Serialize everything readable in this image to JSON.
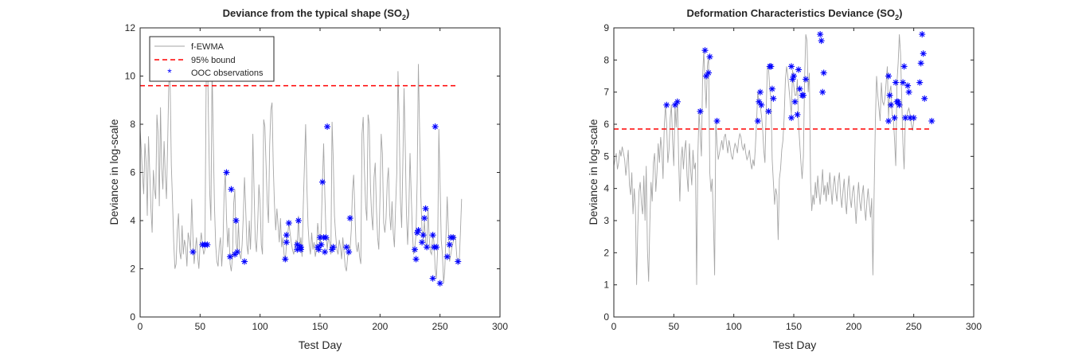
{
  "chart_data": [
    {
      "type": "line",
      "title": "Deviance from the typical shape (SO",
      "title_sub": "2",
      "title_close": ")",
      "xlabel": "Test Day",
      "ylabel": "Deviance in log-scale",
      "xlim": [
        0,
        300
      ],
      "ylim": [
        0,
        12
      ],
      "xticks": [
        "0",
        "50",
        "100",
        "150",
        "200",
        "250",
        "300"
      ],
      "yticks": [
        "0",
        "2",
        "4",
        "6",
        "8",
        "10",
        "12"
      ],
      "legend": {
        "position": "top-left",
        "entries": [
          "f-EWMA",
          "95% bound",
          "OOC observations"
        ]
      },
      "bound": 9.6,
      "series": [
        {
          "name": "f-EWMA",
          "color": "#a6a6a6",
          "values": [
            7.8,
            6.9,
            5.9,
            5.1,
            7.2,
            6.4,
            4.2,
            7.5,
            6.0,
            4.5,
            3.5,
            6.1,
            5.3,
            4.9,
            8.4,
            7.6,
            4.6,
            8.7,
            6.2,
            5.3,
            7.3,
            5.9,
            4.9,
            7.4,
            10.0,
            9.7,
            6.3,
            4.8,
            3.1,
            2.0,
            2.2,
            3.6,
            4.3,
            2.7,
            2.4,
            3.8,
            2.6,
            3.2,
            2.9,
            2.1,
            3.5,
            3.2,
            2.8,
            4.9,
            3.4,
            2.2,
            2.8,
            3.3,
            2.5,
            2.0,
            3.0,
            3.5,
            3.0,
            2.6,
            2.8,
            9.6,
            11.5,
            8.1,
            5.2,
            4.0,
            10.4,
            7.3,
            4.6,
            3.0,
            2.3,
            2.1,
            2.9,
            3.3,
            2.1,
            3.0,
            5.1,
            6.0,
            4.1,
            2.9,
            3.7,
            2.2,
            1.9,
            2.5,
            4.7,
            5.3,
            3.1,
            2.7,
            3.9,
            2.6,
            2.4,
            3.0,
            4.2,
            5.8,
            4.5,
            3.0,
            2.6,
            4.0,
            2.8,
            4.4,
            7.6,
            5.3,
            3.2,
            2.7,
            3.9,
            5.5,
            4.7,
            3.0,
            2.6,
            8.2,
            7.9,
            6.3,
            4.7,
            3.9,
            7.1,
            8.6,
            8.9,
            6.3,
            4.7,
            3.6,
            4.5,
            3.8,
            3.1,
            4.1,
            2.9,
            3.3,
            2.6,
            2.3,
            3.0,
            3.4,
            3.9,
            3.5,
            3.1,
            2.8,
            2.6,
            2.9,
            3.2,
            3.0,
            4.2,
            2.8,
            3.3,
            2.5,
            4.6,
            6.3,
            8.0,
            5.5,
            3.8,
            3.0,
            2.6,
            3.5,
            2.8,
            3.1,
            2.5,
            2.8,
            3.9,
            3.4,
            2.9,
            3.7,
            5.6,
            7.2,
            5.1,
            3.4,
            2.8,
            3.3,
            3.1,
            2.6,
            8.1,
            6.5,
            4.2,
            3.4,
            2.8,
            2.6,
            3.2,
            2.9,
            2.4,
            3.3,
            2.7,
            2.1,
            1.9,
            2.5,
            3.0,
            2.8,
            3.6,
            5.2,
            5.9,
            4.4,
            3.0,
            2.7,
            3.1,
            2.5,
            2.2,
            7.6,
            8.3,
            6.1,
            4.6,
            4.0,
            8.4,
            8.0,
            5.4,
            4.2,
            3.6,
            5.8,
            6.4,
            4.5,
            3.3,
            2.8,
            5.0,
            7.6,
            6.8,
            3.9,
            3.5,
            4.1,
            5.6,
            6.2,
            4.3,
            3.6,
            4.8,
            3.5,
            2.9,
            4.6,
            6.0,
            10.2,
            8.1,
            4.9,
            3.7,
            6.4,
            9.5,
            7.1,
            4.3,
            3.0,
            4.4,
            6.8,
            5.1,
            3.5,
            2.6,
            2.9,
            3.4,
            5.7,
            10.5,
            7.6,
            5.0,
            3.6,
            3.2,
            4.0,
            3.1,
            2.8,
            4.5,
            3.3,
            2.7,
            2.6,
            3.5,
            3.1,
            2.0,
            1.6,
            2.8,
            7.8,
            5.6,
            3.2,
            2.6,
            1.4,
            2.0,
            3.4,
            5.0,
            3.6,
            2.3,
            2.6,
            2.9,
            3.1,
            3.4,
            3.2,
            2.5,
            2.2,
            2.3,
            3.5,
            4.9
          ],
          "x_start": 0,
          "x_step": 1
        },
        {
          "name": "OOC observations",
          "color": "#0000ff",
          "points": [
            [
              44,
              2.7
            ],
            [
              52,
              3.0
            ],
            [
              54,
              3.0
            ],
            [
              56,
              3.0
            ],
            [
              72,
              6.0
            ],
            [
              75,
              2.5
            ],
            [
              76,
              5.3
            ],
            [
              79,
              2.6
            ],
            [
              80,
              4.0
            ],
            [
              81,
              2.7
            ],
            [
              87,
              2.3
            ],
            [
              121,
              2.4
            ],
            [
              122,
              3.4
            ],
            [
              122,
              3.1
            ],
            [
              124,
              3.9
            ],
            [
              131,
              3.0
            ],
            [
              131,
              2.8
            ],
            [
              132,
              4.0
            ],
            [
              133,
              2.9
            ],
            [
              134,
              2.9
            ],
            [
              134,
              2.8
            ],
            [
              148,
              2.9
            ],
            [
              149,
              2.8
            ],
            [
              150,
              3.3
            ],
            [
              151,
              3.0
            ],
            [
              152,
              5.6
            ],
            [
              153,
              3.3
            ],
            [
              154,
              2.7
            ],
            [
              155,
              3.3
            ],
            [
              156,
              7.9
            ],
            [
              160,
              2.8
            ],
            [
              161,
              2.9
            ],
            [
              172,
              2.9
            ],
            [
              174,
              2.7
            ],
            [
              175,
              4.1
            ],
            [
              229,
              2.8
            ],
            [
              230,
              2.4
            ],
            [
              231,
              3.5
            ],
            [
              232,
              3.6
            ],
            [
              235,
              3.1
            ],
            [
              236,
              3.4
            ],
            [
              237,
              4.1
            ],
            [
              238,
              4.5
            ],
            [
              239,
              2.9
            ],
            [
              244,
              3.4
            ],
            [
              244,
              1.6
            ],
            [
              245,
              2.9
            ],
            [
              246,
              7.9
            ],
            [
              247,
              2.9
            ],
            [
              250,
              1.4
            ],
            [
              256,
              2.5
            ],
            [
              258,
              3.0
            ],
            [
              259,
              3.3
            ],
            [
              261,
              3.3
            ],
            [
              265,
              2.3
            ]
          ]
        }
      ]
    },
    {
      "type": "line",
      "title": "Deformation Characteristics Deviance (SO",
      "title_sub": "2",
      "title_close": ")",
      "xlabel": "Test Day",
      "ylabel": "Deviance in log-scale",
      "xlim": [
        0,
        300
      ],
      "ylim": [
        0,
        9
      ],
      "xticks": [
        "0",
        "50",
        "100",
        "150",
        "200",
        "250",
        "300"
      ],
      "yticks": [
        "0",
        "1",
        "2",
        "3",
        "4",
        "5",
        "6",
        "7",
        "8",
        "9"
      ],
      "bound": 5.85,
      "series": [
        {
          "name": "f-EWMA",
          "color": "#a6a6a6",
          "values": [
            4.7,
            4.9,
            5.1,
            4.6,
            4.8,
            5.2,
            5.0,
            5.3,
            5.1,
            4.9,
            4.4,
            4.8,
            5.2,
            4.1,
            3.8,
            4.5,
            3.2,
            4.0,
            3.4,
            1.0,
            2.8,
            3.9,
            4.2,
            3.5,
            3.2,
            4.4,
            3.0,
            4.7,
            2.1,
            1.1,
            2.9,
            4.2,
            3.6,
            4.8,
            5.1,
            3.9,
            4.5,
            5.4,
            4.8,
            5.6,
            5.2,
            4.3,
            5.9,
            6.6,
            6.0,
            4.8,
            5.2,
            6.2,
            6.6,
            5.5,
            4.7,
            6.6,
            5.9,
            6.8,
            4.9,
            3.6,
            4.9,
            5.3,
            4.6,
            5.2,
            5.5,
            4.4,
            3.9,
            5.4,
            4.6,
            4.1,
            5.2,
            4.6,
            4.8,
            1.0,
            5.0,
            6.4,
            5.7,
            5.0,
            7.5,
            8.3,
            7.3,
            6.5,
            7.8,
            8.1,
            4.5,
            3.9,
            4.3,
            3.0,
            1.3,
            6.1,
            5.4,
            4.9,
            5.1,
            5.3,
            5.5,
            5.2,
            5.6,
            5.7,
            5.4,
            5.1,
            5.5,
            5.3,
            5.0,
            4.9,
            5.2,
            5.4,
            5.3,
            5.1,
            5.5,
            5.7,
            5.6,
            5.3,
            5.2,
            5.4,
            5.1,
            4.9,
            5.0,
            5.2,
            4.8,
            4.6,
            4.9,
            4.7,
            5.3,
            6.1,
            7.0,
            6.7,
            6.6,
            6.3,
            5.9,
            5.2,
            4.8,
            6.4,
            7.8,
            7.7,
            7.1,
            6.8,
            4.9,
            4.2,
            3.5,
            4.0,
            3.8,
            2.4,
            4.3,
            4.6,
            5.2,
            5.5,
            6.2,
            7.4,
            7.8,
            7.5,
            7.1,
            6.7,
            6.3,
            7.7,
            7.2,
            6.9,
            6.9,
            7.4,
            6.0,
            5.4,
            4.8,
            4.3,
            5.0,
            7.4,
            8.8,
            8.6,
            7.0,
            7.6,
            4.2,
            3.3,
            3.8,
            3.5,
            4.2,
            3.7,
            4.4,
            3.9,
            3.5,
            4.0,
            4.6,
            3.8,
            4.1,
            3.6,
            4.2,
            3.8,
            4.5,
            4.0,
            3.5,
            4.1,
            4.4,
            3.9,
            3.6,
            4.2,
            4.5,
            3.8,
            3.4,
            3.9,
            4.3,
            3.6,
            3.2,
            4.0,
            4.4,
            3.7,
            3.4,
            3.9,
            4.1,
            3.5,
            2.9,
            3.7,
            4.2,
            3.6,
            3.3,
            3.8,
            4.1,
            3.4,
            3.0,
            3.6,
            4.0,
            3.5,
            3.1,
            3.7,
            1.3,
            3.8,
            6.1,
            7.5,
            6.9,
            6.5,
            6.1,
            7.3,
            6.7,
            6.6,
            6.8,
            7.3,
            7.8,
            6.2,
            7.0,
            7.2,
            6.3,
            6.2,
            5.5,
            4.7,
            7.3,
            7.9,
            8.8,
            8.2,
            6.8,
            5.4,
            4.6,
            6.1,
            6.2,
            6.4,
            6.5,
            6.3,
            6.0,
            5.8,
            6.1,
            6.2
          ],
          "x_start": 0,
          "x_step": 1
        },
        {
          "name": "OOC observations",
          "color": "#0000ff",
          "points": [
            [
              44,
              6.6
            ],
            [
              51,
              6.6
            ],
            [
              53,
              6.7
            ],
            [
              72,
              6.4
            ],
            [
              76,
              8.3
            ],
            [
              77,
              7.5
            ],
            [
              79,
              7.6
            ],
            [
              80,
              8.1
            ],
            [
              86,
              6.1
            ],
            [
              120,
              6.1
            ],
            [
              121,
              6.7
            ],
            [
              122,
              7.0
            ],
            [
              123,
              6.6
            ],
            [
              129,
              6.4
            ],
            [
              130,
              7.8
            ],
            [
              131,
              7.8
            ],
            [
              132,
              7.1
            ],
            [
              133,
              6.8
            ],
            [
              148,
              6.2
            ],
            [
              148,
              7.8
            ],
            [
              149,
              7.4
            ],
            [
              150,
              7.5
            ],
            [
              151,
              6.7
            ],
            [
              153,
              6.3
            ],
            [
              154,
              7.7
            ],
            [
              155,
              7.1
            ],
            [
              157,
              6.9
            ],
            [
              158,
              6.9
            ],
            [
              160,
              7.4
            ],
            [
              172,
              8.8
            ],
            [
              173,
              8.6
            ],
            [
              174,
              7.0
            ],
            [
              175,
              7.6
            ],
            [
              229,
              6.1
            ],
            [
              229,
              7.5
            ],
            [
              230,
              6.9
            ],
            [
              231,
              6.6
            ],
            [
              234,
              6.2
            ],
            [
              235,
              7.3
            ],
            [
              236,
              6.7
            ],
            [
              237,
              6.7
            ],
            [
              238,
              6.6
            ],
            [
              241,
              7.3
            ],
            [
              242,
              7.8
            ],
            [
              243,
              6.2
            ],
            [
              245,
              7.2
            ],
            [
              246,
              7.0
            ],
            [
              247,
              6.2
            ],
            [
              250,
              6.2
            ],
            [
              255,
              7.3
            ],
            [
              256,
              7.9
            ],
            [
              257,
              8.8
            ],
            [
              258,
              8.2
            ],
            [
              259,
              6.8
            ],
            [
              265,
              6.1
            ]
          ]
        }
      ]
    }
  ],
  "colors": {
    "bound": "#ff0000",
    "line": "#a6a6a6",
    "markers": "#0000ff",
    "axes": "#262626"
  }
}
